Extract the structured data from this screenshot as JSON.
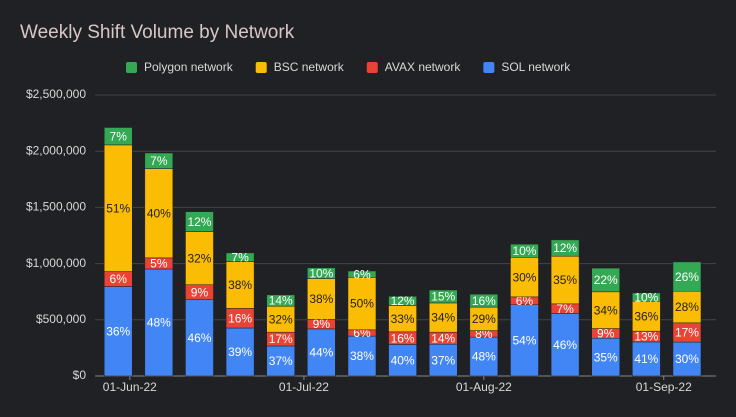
{
  "chart_data": {
    "type": "stacked-bar",
    "title": "Weekly Shift Volume by Network",
    "x": [
      "2022-05-30",
      "2022-06-06",
      "2022-06-13",
      "2022-06-20",
      "2022-06-27",
      "2022-07-04",
      "2022-07-11",
      "2022-07-18",
      "2022-07-25",
      "2022-08-01",
      "2022-08-08",
      "2022-08-15",
      "2022-08-22",
      "2022-08-29",
      "2022-09-05"
    ],
    "xlim": [
      "2022-05-26",
      "2022-09-10"
    ],
    "xticks": [
      {
        "value": "2022-06-01",
        "label": "01-Jun-22"
      },
      {
        "value": "2022-07-01",
        "label": "01-Jul-22"
      },
      {
        "value": "2022-08-01",
        "label": "01-Aug-22"
      },
      {
        "value": "2022-09-01",
        "label": "01-Sep-22"
      }
    ],
    "ylim": [
      0,
      2500000
    ],
    "yticks": [
      {
        "value": 0,
        "label": "$0"
      },
      {
        "value": 500000,
        "label": "$500,000"
      },
      {
        "value": 1000000,
        "label": "$1,000,000"
      },
      {
        "value": 1500000,
        "label": "$1,500,000"
      },
      {
        "value": 2000000,
        "label": "$2,000,000"
      },
      {
        "value": 2500000,
        "label": "$2,500,000"
      }
    ],
    "grid": true,
    "legend": "top",
    "series": [
      {
        "name": "SOL network",
        "color": "#4285f4",
        "values": [
          796000,
          952000,
          679000,
          427000,
          267000,
          419000,
          355000,
          281000,
          283000,
          346000,
          634000,
          557000,
          336000,
          303000,
          302000
        ],
        "share_labels": [
          "36%",
          "48%",
          "46%",
          "39%",
          "37%",
          "44%",
          "38%",
          "40%",
          "37%",
          "48%",
          "54%",
          "46%",
          "35%",
          "41%",
          "30%"
        ]
      },
      {
        "name": "AVAX network",
        "color": "#ea4335",
        "values": [
          133000,
          99000,
          133000,
          175000,
          123000,
          86000,
          56000,
          112000,
          107000,
          58000,
          70000,
          85000,
          86000,
          96000,
          171000
        ],
        "share_labels": [
          "6%",
          "5%",
          "9%",
          "16%",
          "17%",
          "9%",
          "6%",
          "16%",
          "14%",
          "8%",
          "6%",
          "7%",
          "9%",
          "13%",
          "17%"
        ]
      },
      {
        "name": "BSC network",
        "color": "#fbbc04",
        "values": [
          1127000,
          794000,
          473000,
          416000,
          231000,
          362000,
          467000,
          232000,
          260000,
          209000,
          352000,
          424000,
          327000,
          266000,
          281000
        ],
        "share_labels": [
          "51%",
          "40%",
          "32%",
          "38%",
          "32%",
          "38%",
          "50%",
          "33%",
          "34%",
          "29%",
          "30%",
          "35%",
          "34%",
          "36%",
          "28%"
        ]
      },
      {
        "name": "Polygon network",
        "color": "#34a853",
        "values": [
          155000,
          139000,
          177000,
          77000,
          101000,
          95000,
          56000,
          84000,
          115000,
          115000,
          117000,
          145000,
          211000,
          74000,
          261000
        ],
        "share_labels": [
          "7%",
          "7%",
          "12%",
          "7%",
          "14%",
          "10%",
          "6%",
          "12%",
          "15%",
          "16%",
          "10%",
          "12%",
          "22%",
          "10%",
          "26%"
        ]
      }
    ]
  }
}
